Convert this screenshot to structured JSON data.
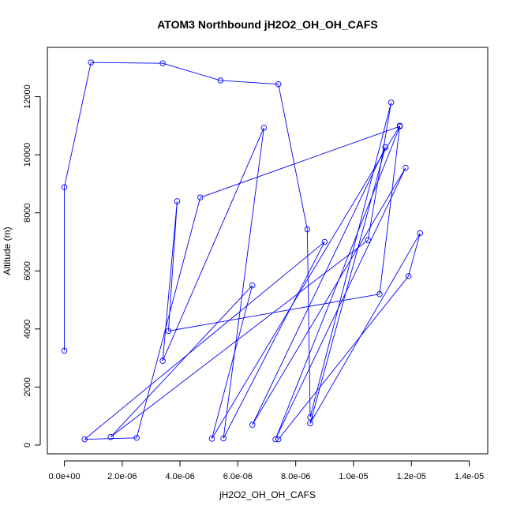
{
  "chart_data": {
    "type": "line",
    "title": "ATOM3 Northbound jH2O2_OH_OH_CAFS",
    "xlabel": "jH2O2_OH_OH_CAFS",
    "ylabel": "Altitude (m)",
    "xlim": [
      -5.88e-07,
      1.464e-05
    ],
    "ylim": [
      -300,
      13700
    ],
    "x_ticks": [
      0,
      2e-06,
      4e-06,
      6e-06,
      8e-06,
      1e-05,
      1.2e-05,
      1.4e-05
    ],
    "x_tick_labels": [
      "0.0e+00",
      "2.0e-06",
      "4.0e-06",
      "6.0e-06",
      "8.0e-06",
      "1.0e-05",
      "1.2e-05",
      "1.4e-05"
    ],
    "y_ticks": [
      0,
      2000,
      4000,
      6000,
      8000,
      10000,
      12000
    ],
    "y_tick_labels": [
      "0",
      "2000",
      "4000",
      "6000",
      "8000",
      "10000",
      "12000"
    ],
    "series_color": "#0000ff",
    "grid": false,
    "legend": "none",
    "points": [
      {
        "x": 0.0,
        "y": 3250
      },
      {
        "x": 0.0,
        "y": 8880
      },
      {
        "x": 9.2e-07,
        "y": 13180
      },
      {
        "x": 3.4e-06,
        "y": 13150
      },
      {
        "x": 5.4e-06,
        "y": 12560
      },
      {
        "x": 7.4e-06,
        "y": 12430
      },
      {
        "x": 8.4e-06,
        "y": 7430
      },
      {
        "x": 8.5e-06,
        "y": 960
      },
      {
        "x": 1.13e-05,
        "y": 11800
      },
      {
        "x": 1.05e-05,
        "y": 7060
      },
      {
        "x": 1.6e-06,
        "y": 280
      },
      {
        "x": 6.5e-06,
        "y": 5500
      },
      {
        "x": 5.1e-06,
        "y": 220
      },
      {
        "x": 1.16e-05,
        "y": 11000
      },
      {
        "x": 1.09e-05,
        "y": 5200
      },
      {
        "x": 3.6e-06,
        "y": 3930
      },
      {
        "x": 3.9e-06,
        "y": 8400
      },
      {
        "x": 3.4e-06,
        "y": 2900
      },
      {
        "x": 6.9e-06,
        "y": 10930
      },
      {
        "x": 5.5e-06,
        "y": 230
      },
      {
        "x": 9e-06,
        "y": 7000
      },
      {
        "x": 7e-07,
        "y": 200
      },
      {
        "x": 2.5e-06,
        "y": 250
      },
      {
        "x": 4.7e-06,
        "y": 8530
      },
      {
        "x": 1.16e-05,
        "y": 10980
      },
      {
        "x": 7.3e-06,
        "y": 200
      },
      {
        "x": 1.18e-05,
        "y": 9550
      },
      {
        "x": 6.5e-06,
        "y": 700
      },
      {
        "x": 1.11e-05,
        "y": 10260
      },
      {
        "x": 8.5e-06,
        "y": 750
      },
      {
        "x": 1.23e-05,
        "y": 7300
      },
      {
        "x": 1.19e-05,
        "y": 5820
      },
      {
        "x": 7.4e-06,
        "y": 200
      }
    ]
  }
}
